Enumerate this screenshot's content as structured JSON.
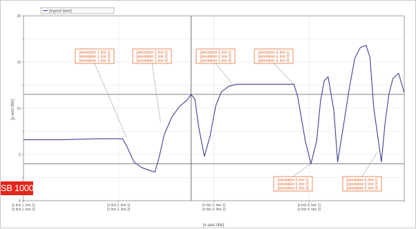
{
  "badge": {
    "label": "SB 1000",
    "color": "#e3251b"
  },
  "colors": {
    "curve": "#3d3f8f",
    "ref_line": "#555555",
    "grid": "#e2e2e2",
    "axis": "#666666",
    "annotation_border": "#e05a1a",
    "annotation_text": "#e05a1a"
  },
  "chart_data": {
    "type": "line",
    "title": "",
    "xlabel": "[x-axis title]",
    "ylabel": "[y-axis title]",
    "legend": {
      "placement": "top-left",
      "label": "[legend label]"
    },
    "grid": true,
    "xlim": [
      0,
      100
    ],
    "ylim": [
      0,
      20
    ],
    "y_ticks": [
      0,
      2.5,
      5,
      7.5,
      10,
      12.5,
      15,
      17.5,
      20
    ],
    "y_tick_labels": [
      "0",
      "",
      "5",
      "",
      "10",
      "",
      "15",
      "",
      "20"
    ],
    "x_ticks": [
      0,
      25,
      50,
      75,
      100
    ],
    "x_tick_labels": [
      [
        "[x tick 1, line 1]",
        "[x tick 1, line 2]"
      ],
      [
        "[x tick 2, line 1]",
        "[x tick 2, line 2]"
      ],
      [
        "[x tick 3, line 1]",
        "[x tick 3, line 2]"
      ],
      [
        "[x tick 4, line 1]",
        "[x tick 4, line 2]"
      ],
      [
        "",
        ""
      ]
    ],
    "reference_lines": {
      "horizontal": [
        4.0,
        11.5
      ],
      "vertical": [
        44
      ]
    },
    "series": [
      {
        "x": [
          0,
          10,
          20,
          26,
          27,
          29,
          31,
          33,
          34.5,
          35.5,
          37,
          39,
          41,
          43,
          44,
          45,
          46,
          47.5,
          49,
          50.5,
          52,
          54,
          56,
          58,
          60,
          62,
          64,
          66,
          68,
          70,
          71,
          72,
          74,
          75.5,
          77,
          78,
          79,
          80,
          81.5,
          82.5,
          84,
          85.5,
          87,
          88.5,
          90,
          91,
          92,
          94,
          95,
          96,
          97,
          98.5,
          100
        ],
        "y": [
          6.6,
          6.6,
          6.7,
          6.7,
          6.0,
          4.2,
          3.6,
          3.3,
          3.1,
          4.5,
          7.2,
          9.1,
          10.2,
          10.9,
          11.5,
          11.0,
          8.0,
          4.8,
          7.0,
          10.3,
          11.8,
          12.4,
          12.6,
          12.6,
          12.6,
          12.6,
          12.6,
          12.6,
          12.6,
          12.6,
          12.6,
          11.3,
          6.5,
          4.0,
          6.5,
          10.8,
          13.0,
          13.4,
          9.8,
          4.2,
          8.0,
          12.0,
          15.4,
          16.6,
          16.8,
          15.5,
          10.0,
          4.2,
          8.5,
          11.6,
          13.2,
          13.8,
          11.7
        ]
      }
    ],
    "annotations": [
      {
        "x": 27,
        "y": 6.9,
        "lines": [
          "[annotation 1, line 1]",
          "[annotation 1, line 2]",
          "[annotation 1, line 3]"
        ]
      },
      {
        "x": 36,
        "y": 8.5,
        "lines": [
          "[annotation 2, line 1]",
          "[annotation 2, line 2]",
          "[annotation 2, line 3]"
        ]
      },
      {
        "x": 55,
        "y": 12.6,
        "lines": [
          "[annotation 3, line 1]",
          "[annotation 3, line 2]",
          "[annotation 3, line 3]"
        ]
      },
      {
        "x": 71,
        "y": 12.6,
        "lines": [
          "[annotation 4, line 1]",
          "[annotation 4, line 2]",
          "[annotation 4, line 3]"
        ]
      },
      {
        "x": 75.5,
        "y": 4.0,
        "lines": [
          "[annotation 5, line 1]",
          "[annotation 5, line 2]",
          "[annotation 5, line 3]"
        ]
      },
      {
        "x": 93,
        "y": 5.3,
        "lines": [
          "[annotation 6, line 1]",
          "[annotation 6, line 2]",
          "[annotation 6, line 3]"
        ]
      }
    ]
  }
}
